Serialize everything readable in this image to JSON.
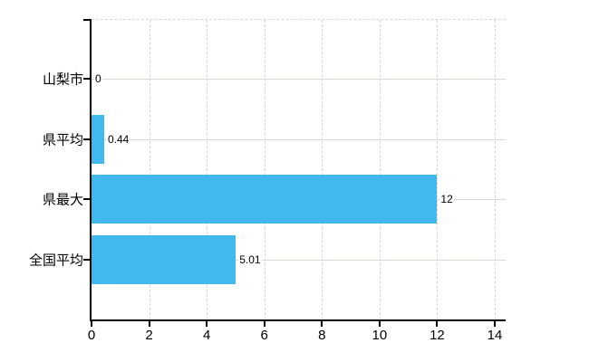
{
  "chart": {
    "title": "",
    "colors": {
      "background": "#ffffff",
      "bar": "#42b9ed",
      "axis": "#000000",
      "grid_horizontal": "#d6dad1",
      "grid_vertical": "#d9d2d9",
      "top_border": "#d8d8d8",
      "text": "#000000"
    }
  },
  "chart_data": {
    "type": "bar",
    "orientation": "horizontal",
    "title": "",
    "xlabel": "",
    "ylabel": "",
    "categories": [
      "山梨市",
      "県平均",
      "県最大",
      "全国平均"
    ],
    "values": [
      0,
      0.44,
      12,
      5.01
    ],
    "value_labels": [
      "0",
      "0.44",
      "12",
      "5.01"
    ],
    "x_ticks": [
      0,
      2,
      4,
      6,
      8,
      10,
      12,
      14
    ],
    "x_tick_labels": [
      "0",
      "2",
      "4",
      "6",
      "8",
      "10",
      "12",
      "14"
    ],
    "xlim": [
      0,
      14.4
    ],
    "grid": "on",
    "legend": "none",
    "bar_color": "#42b9ed"
  }
}
